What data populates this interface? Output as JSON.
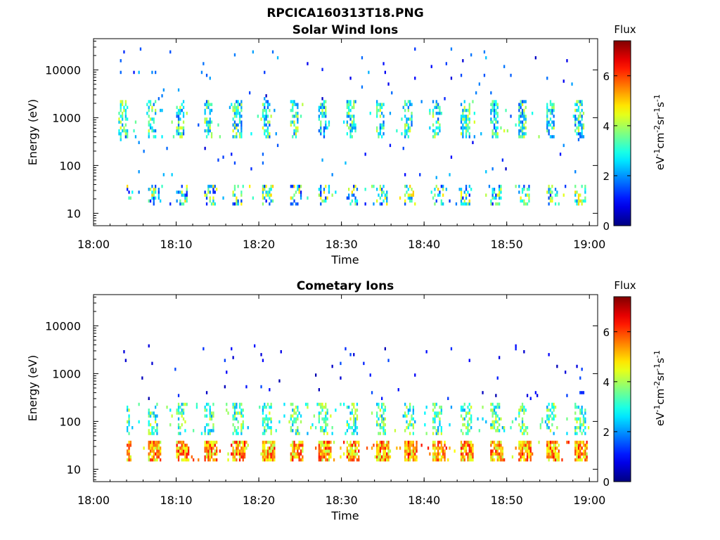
{
  "figure": {
    "main_title": "RPCICA160313T18.PNG"
  },
  "panels": {
    "solar": {
      "title": "Solar Wind Ions",
      "xlabel": "Time",
      "ylabel": "Energy (eV)"
    },
    "cometary": {
      "title": "Cometary Ions",
      "xlabel": "Time",
      "ylabel": "Energy (eV)"
    }
  },
  "colorbar": {
    "label": "Flux",
    "units": "eV-1cm-2sr-1s-1",
    "units_parts": [
      "eV",
      "-1",
      "cm",
      "-2",
      "sr",
      "-1",
      "s",
      "-1"
    ],
    "ticks": [
      "0",
      "2",
      "4",
      "6"
    ],
    "range": [
      0,
      7.4
    ],
    "colormap": "jet"
  },
  "chart_data": [
    {
      "type": "heatmap",
      "title": "Solar Wind Ions",
      "xlabel": "Time",
      "ylabel": "Energy (eV)",
      "x_range": [
        "18:00",
        "19:01"
      ],
      "x_ticks": [
        "18:00",
        "18:10",
        "18:20",
        "18:30",
        "18:40",
        "18:50",
        "19:00"
      ],
      "y_scale": "log",
      "y_range": [
        5.5,
        45000
      ],
      "y_ticks": [
        "10",
        "100",
        "1000",
        "10000"
      ],
      "z_label": "Flux",
      "z_range": [
        0,
        7.4
      ],
      "data_start": "18:03",
      "features": [
        {
          "component": "solar wind",
          "energy_eV": [
            400,
            2500
          ],
          "flux_range": [
            1.5,
            4.5
          ],
          "time_range": [
            "18:03",
            "19:00"
          ]
        },
        {
          "component": "low energy",
          "energy_eV": [
            15,
            40
          ],
          "flux_range": [
            1,
            5
          ],
          "time_range": [
            "18:04",
            "19:00"
          ]
        },
        {
          "component": "sparse background",
          "energy_eV": [
            50,
            30000
          ],
          "flux_range": [
            0.5,
            2.5
          ],
          "time_range": [
            "18:03",
            "19:00"
          ]
        }
      ]
    },
    {
      "type": "heatmap",
      "title": "Cometary Ions",
      "xlabel": "Time",
      "ylabel": "Energy (eV)",
      "x_range": [
        "18:00",
        "19:01"
      ],
      "x_ticks": [
        "18:00",
        "18:10",
        "18:20",
        "18:30",
        "18:40",
        "18:50",
        "19:00"
      ],
      "y_scale": "log",
      "y_range": [
        5.5,
        45000
      ],
      "y_ticks": [
        "10",
        "100",
        "1000",
        "10000"
      ],
      "z_label": "Flux",
      "z_range": [
        0,
        7.4
      ],
      "data_start": "18:03",
      "features": [
        {
          "component": "cometary ions core",
          "energy_eV": [
            14,
            40
          ],
          "flux_range": [
            4,
            6.5
          ],
          "time_range": [
            "18:04",
            "19:00"
          ]
        },
        {
          "component": "cometary ions tail",
          "energy_eV": [
            50,
            250
          ],
          "flux_range": [
            2,
            4.5
          ],
          "time_range": [
            "18:04",
            "19:00"
          ]
        },
        {
          "component": "sparse background",
          "energy_eV": [
            300,
            4000
          ],
          "flux_range": [
            0.3,
            1.5
          ],
          "time_range": [
            "18:03",
            "19:00"
          ]
        }
      ]
    }
  ]
}
